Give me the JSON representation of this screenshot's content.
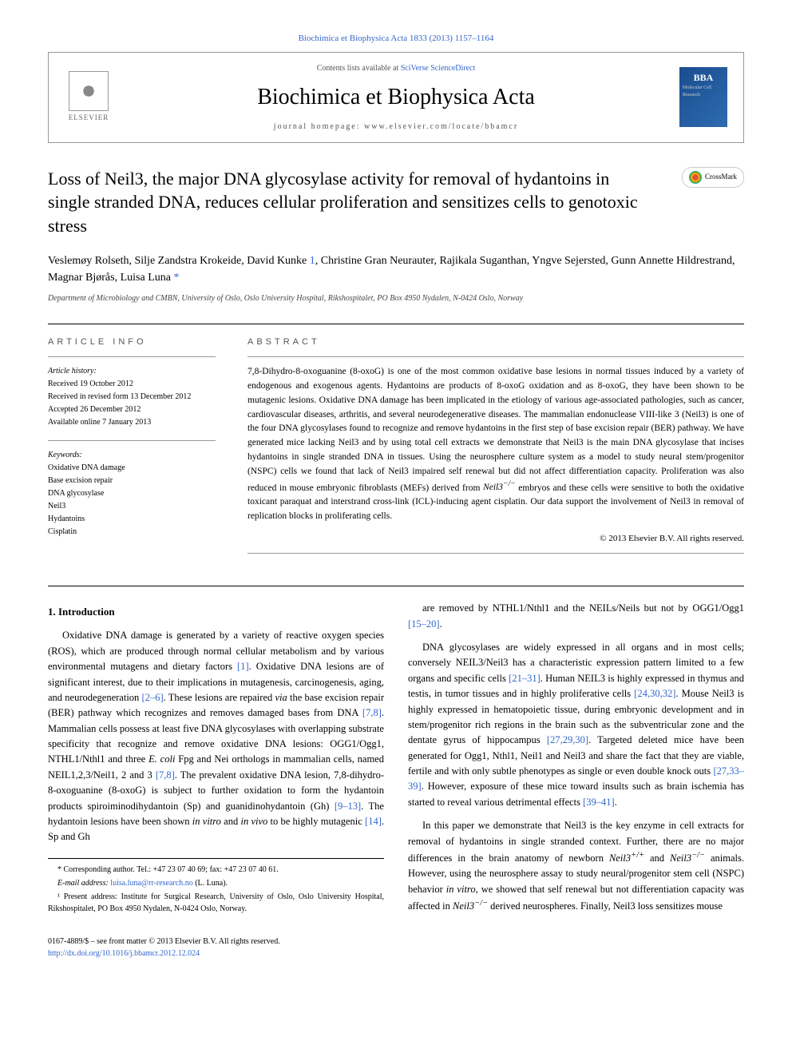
{
  "topLink": {
    "prefix": "",
    "text": "Biochimica et Biophysica Acta 1833 (2013) 1157–1164",
    "href": "#"
  },
  "headerBox": {
    "contentsPrefix": "Contents lists available at ",
    "contentsLink": "SciVerse ScienceDirect",
    "journalName": "Biochimica et Biophysica Acta",
    "homepageLabel": "journal homepage: www.elsevier.com/locate/bbamcr",
    "elsevierLabel": "ELSEVIER",
    "bbaLabel": "BBA",
    "bbaSub": "Molecular Cell Research"
  },
  "crossmark": "CrossMark",
  "title": "Loss of Neil3, the major DNA glycosylase activity for removal of hydantoins in single stranded DNA, reduces cellular proliferation and sensitizes cells to genotoxic stress",
  "authorsHtml": "Veslemøy Rolseth, Silje Zandstra Krokeide, David Kunke <a href=\"#\">1</a>, Christine Gran Neurauter, Rajikala Suganthan, Yngve Sejersted, Gunn Annette Hildrestrand, Magnar Bjørås, Luisa Luna <a href=\"#\">*</a>",
  "affiliation": "Department of Microbiology and CMBN, University of Oslo, Oslo University Hospital, Rikshospitalet, PO Box 4950 Nydalen, N-0424 Oslo, Norway",
  "articleInfo": {
    "heading": "ARTICLE INFO",
    "historyLabel": "Article history:",
    "history": [
      "Received 19 October 2012",
      "Received in revised form 13 December 2012",
      "Accepted 26 December 2012",
      "Available online 7 January 2013"
    ],
    "keywordsLabel": "Keywords:",
    "keywords": [
      "Oxidative DNA damage",
      "Base excision repair",
      "DNA glycosylase",
      "Neil3",
      "Hydantoins",
      "Cisplatin"
    ]
  },
  "abstract": {
    "heading": "ABSTRACT",
    "textHtml": "7,8-Dihydro-8-oxoguanine (8-oxoG) is one of the most common oxidative base lesions in normal tissues induced by a variety of endogenous and exogenous agents. Hydantoins are products of 8-oxoG oxidation and as 8-oxoG, they have been shown to be mutagenic lesions. Oxidative DNA damage has been implicated in the etiology of various age-associated pathologies, such as cancer, cardiovascular diseases, arthritis, and several neurodegenerative diseases. The mammalian endonuclease VIII-like 3 (Neil3) is one of the four DNA glycosylases found to recognize and remove hydantoins in the first step of base excision repair (BER) pathway. We have generated mice lacking Neil3 and by using total cell extracts we demonstrate that Neil3 is the main DNA glycosylase that incises hydantoins in single stranded DNA in tissues. Using the neurosphere culture system as a model to study neural stem/progenitor (NSPC) cells we found that lack of Neil3 impaired self renewal but did not affect differentiation capacity. Proliferation was also reduced in mouse embryonic fibroblasts (MEFs) derived from <i>Neil3<sup>−/−</sup></i> embryos and these cells were sensitive to both the oxidative toxicant paraquat and interstrand cross-link (ICL)-inducing agent cisplatin. Our data support the involvement of Neil3 in removal of replication blocks in proliferating cells.",
    "copyright": "© 2013 Elsevier B.V. All rights reserved."
  },
  "intro": {
    "heading": "1. Introduction",
    "p1Html": "Oxidative DNA damage is generated by a variety of reactive oxygen species (ROS), which are produced through normal cellular metabolism and by various environmental mutagens and dietary factors <a href=\"#\">[1]</a>. Oxidative DNA lesions are of significant interest, due to their implications in mutagenesis, carcinogenesis, aging, and neurodegeneration <a href=\"#\">[2–6]</a>. These lesions are repaired <i>via</i> the base excision repair (BER) pathway which recognizes and removes damaged bases from DNA <a href=\"#\">[7,8]</a>. Mammalian cells possess at least five DNA glycosylases with overlapping substrate specificity that recognize and remove oxidative DNA lesions: OGG1/Ogg1, NTHL1/Nthl1 and three <i>E. coli</i> Fpg and Nei orthologs in mammalian cells, named NEIL1,2,3/Neil1, 2 and 3 <a href=\"#\">[7,8]</a>. The prevalent oxidative DNA lesion, 7,8-dihydro-8-oxoguanine (8-oxoG) is subject to further oxidation to form the hydantoin products spiroiminodihydantoin (Sp) and guanidinohydantoin (Gh) <a href=\"#\">[9–13]</a>. The hydantoin lesions have been shown <i>in vitro</i> and <i>in vivo</i> to be highly mutagenic <a href=\"#\">[14]</a>. Sp and Gh",
    "p2Html": "are removed by NTHL1/Nthl1 and the NEILs/Neils but not by OGG1/Ogg1 <a href=\"#\">[15–20]</a>.",
    "p3Html": "DNA glycosylases are widely expressed in all organs and in most cells; conversely NEIL3/Neil3 has a characteristic expression pattern limited to a few organs and specific cells <a href=\"#\">[21–31]</a>. Human NEIL3 is highly expressed in thymus and testis, in tumor tissues and in highly proliferative cells <a href=\"#\">[24,30,32]</a>. Mouse Neil3 is highly expressed in hematopoietic tissue, during embryonic development and in stem/progenitor rich regions in the brain such as the subventricular zone and the dentate gyrus of hippocampus <a href=\"#\">[27,29,30]</a>. Targeted deleted mice have been generated for Ogg1, Nthl1, Neil1 and Neil3 and share the fact that they are viable, fertile and with only subtle phenotypes as single or even double knock outs <a href=\"#\">[27,33–39]</a>. However, exposure of these mice toward insults such as brain ischemia has started to reveal various detrimental effects <a href=\"#\">[39–41]</a>.",
    "p4Html": "In this paper we demonstrate that Neil3 is the key enzyme in cell extracts for removal of hydantoins in single stranded context. Further, there are no major differences in the brain anatomy of newborn <i>Neil3<sup>+/+</sup></i> and <i>Neil3<sup>−/−</sup></i> animals. However, using the neurosphere assay to study neural/progenitor stem cell (NSPC) behavior <i>in vitro</i>, we showed that self renewal but not differentiation capacity was affected in <i>Neil3<sup>−/−</sup></i> derived neurospheres. Finally, Neil3 loss sensitizes mouse"
  },
  "footnotes": {
    "corr": "* Corresponding author. Tel.: +47 23 07 40 69; fax: +47 23 07 40 61.",
    "emailLabel": "E-mail address: ",
    "email": "luisa.luna@rr-research.no",
    "emailSuffix": " (L. Luna).",
    "fn1": "¹ Present address: Institute for Surgical Research, University of Oslo, Oslo University Hospital, Rikshospitalet, PO Box 4950 Nydalen, N-0424 Oslo, Norway."
  },
  "bottom": {
    "issn": "0167-4889/$ – see front matter © 2013 Elsevier B.V. All rights reserved.",
    "doi": "http://dx.doi.org/10.1016/j.bbamcr.2012.12.024"
  },
  "colors": {
    "link": "#3366cc",
    "border": "#999999",
    "bbaGradStart": "#1a4d8f",
    "bbaGradEnd": "#2e6bb0"
  }
}
